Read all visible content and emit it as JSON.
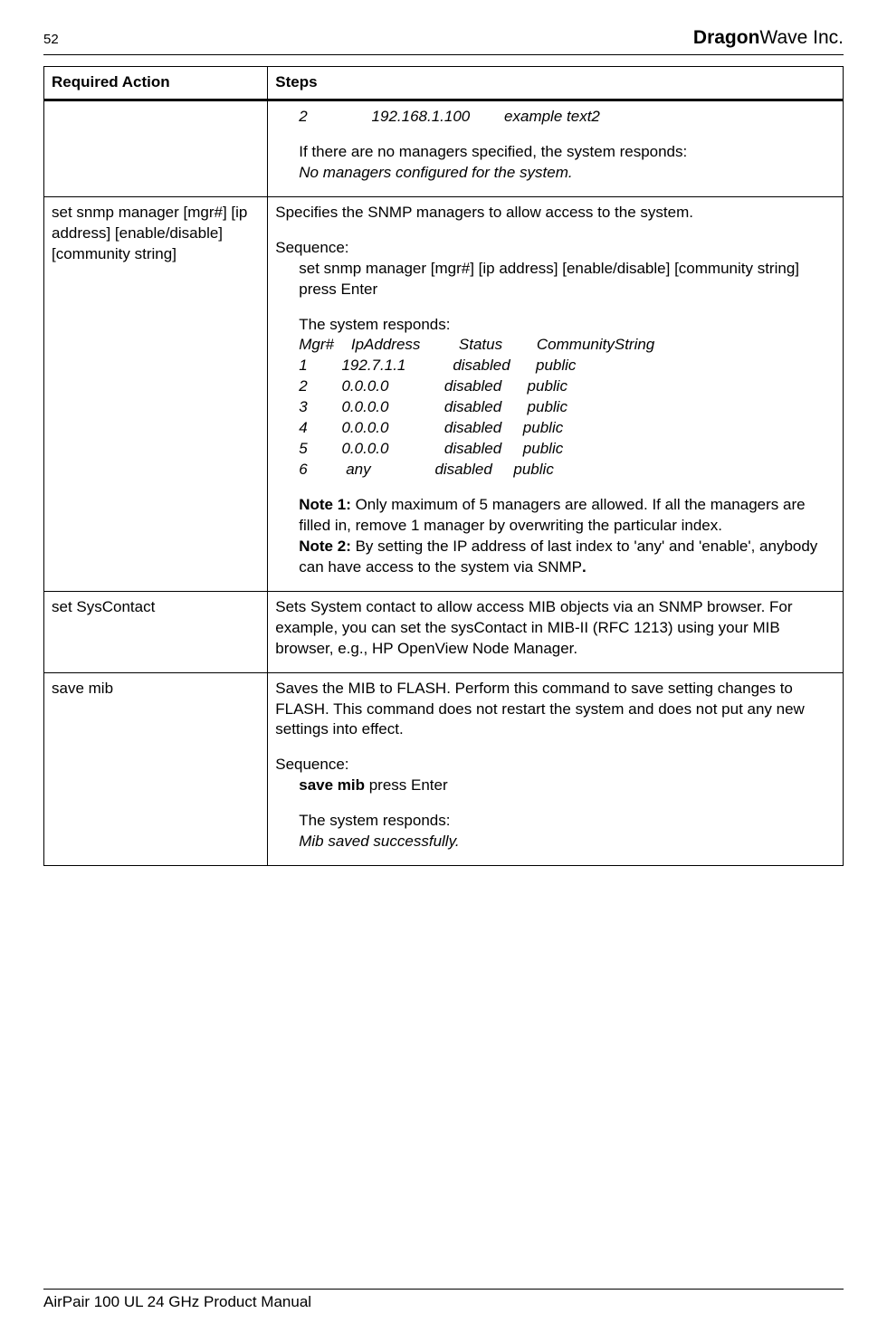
{
  "header": {
    "page_number": "52",
    "brand_bold": "Dragon",
    "brand_rest": "Wave Inc."
  },
  "table": {
    "columns": [
      "Required Action",
      "Steps"
    ],
    "row1": {
      "action": "",
      "line1": "2               192.168.1.100        example text2",
      "p1": "If there are no managers specified, the system responds:",
      "p2": "No managers configured for the system."
    },
    "row2": {
      "action": "set snmp manager [mgr#] [ip address] [enable/disable] [community string]",
      "desc": "Specifies the SNMP managers to allow access to the system.",
      "seq_label": "Sequence:",
      "seq_text": "set snmp manager [mgr#] [ip address] [enable/disable] [community string] press Enter",
      "resp_label": "The system responds:",
      "t_header": "Mgr#    IpAddress         Status        CommunityString",
      "t_r1": "1        192.7.1.1           disabled      public",
      "t_r2": "2        0.0.0.0             disabled      public",
      "t_r3": "3        0.0.0.0             disabled      public",
      "t_r4": "4        0.0.0.0             disabled     public",
      "t_r5": "5        0.0.0.0             disabled     public",
      "t_r6": "6         any               disabled     public",
      "note1_label": "Note 1:",
      "note1_text": " Only maximum of 5 managers are allowed. If all the managers are filled in, remove 1 manager by overwriting the particular index.",
      "note2_label": "Note 2:",
      "note2_text": " By setting the IP address of last index to 'any' and 'enable', anybody can have access to the system via SNMP",
      "note2_period": "."
    },
    "row3": {
      "action": "set SysContact",
      "desc": "Sets System contact to allow access MIB objects via an SNMP browser. For example, you can set the sysContact in MIB-II (RFC 1213) using your MIB browser, e.g., HP OpenView Node Manager."
    },
    "row4": {
      "action": "save mib",
      "desc": "Saves the MIB to FLASH. Perform this command to save setting changes to FLASH. This command does not restart the system and does not put any new settings into effect.",
      "seq_label": "Sequence:",
      "seq_bold": "save mib",
      "seq_rest": " press Enter",
      "resp_label": "The system responds:",
      "resp_text": "Mib saved successfully."
    }
  },
  "footer": {
    "text": "AirPair 100 UL 24 GHz Product Manual"
  }
}
